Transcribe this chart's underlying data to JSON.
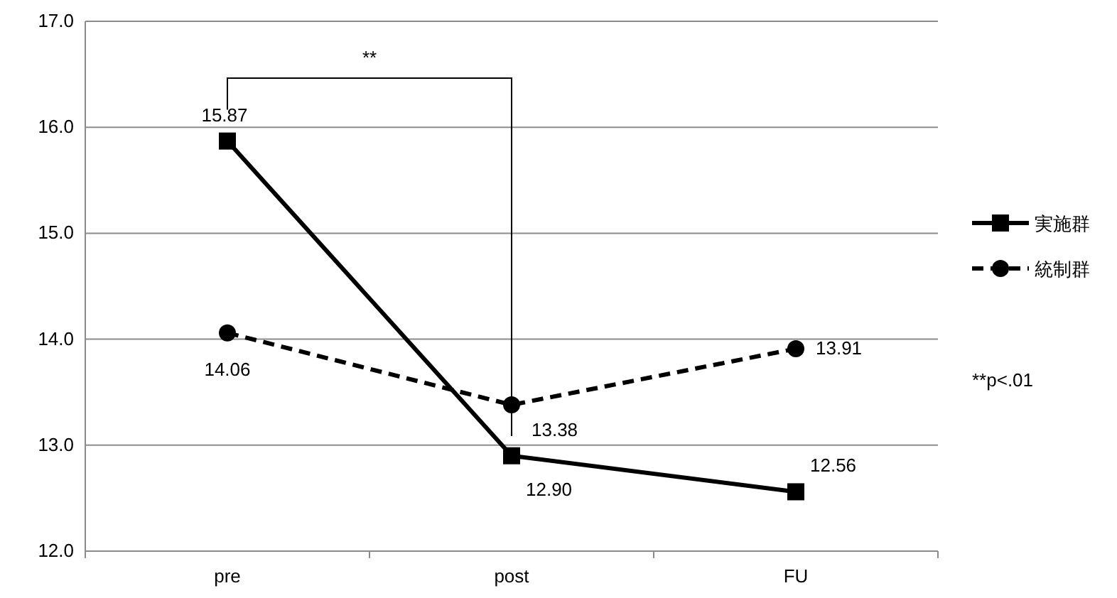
{
  "chart_data": {
    "type": "line",
    "categories": [
      "pre",
      "post",
      "FU"
    ],
    "series": [
      {
        "name": "実施群",
        "color": "#000000",
        "values": [
          15.87,
          12.9,
          12.56
        ],
        "value_labels": [
          "15.87",
          "12.90",
          "12.56"
        ],
        "marker": "square",
        "line_style": "solid"
      },
      {
        "name": "統制群",
        "color": "#000000",
        "values": [
          14.06,
          13.38,
          13.91
        ],
        "value_labels": [
          "14.06",
          "13.38",
          "13.91"
        ],
        "marker": "circle",
        "line_style": "dashed"
      }
    ],
    "ylim": [
      12,
      17
    ],
    "yticks": [
      {
        "value": 12,
        "label": "12.0"
      },
      {
        "value": 13,
        "label": "13.0"
      },
      {
        "value": 14,
        "label": "14.0"
      },
      {
        "value": 15,
        "label": "15.0"
      },
      {
        "value": 16,
        "label": "16.0"
      },
      {
        "value": 17,
        "label": "17.0"
      }
    ],
    "grid": "y",
    "legend": "right",
    "annotations": [
      "**",
      "**p<.01"
    ]
  }
}
